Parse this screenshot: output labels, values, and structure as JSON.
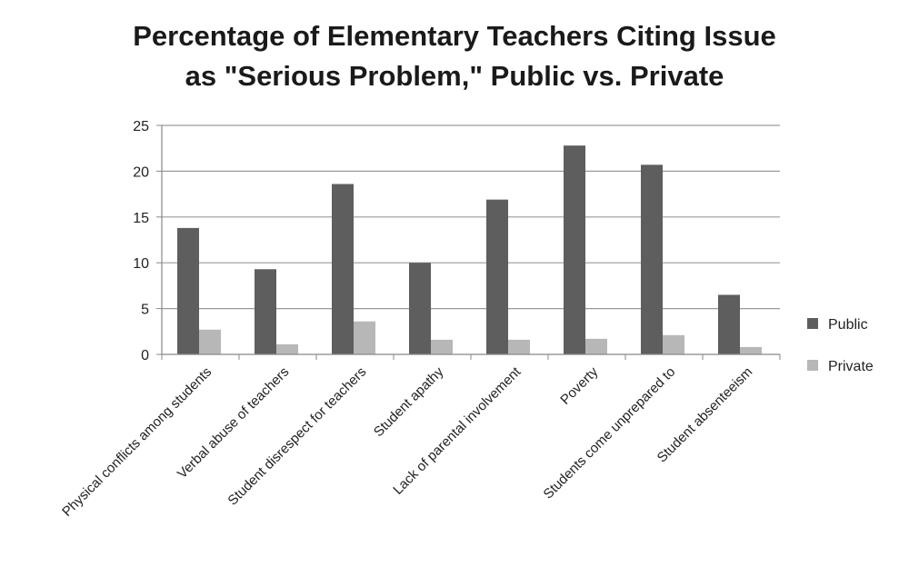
{
  "chart_data": {
    "type": "bar",
    "title_line1": "Percentage of Elementary Teachers Citing Issue",
    "title_line2": "as \"Serious Problem,\" Public vs. Private",
    "categories": [
      "Physical conflicts among students",
      "Verbal abuse of teachers",
      "Student disrespect for teachers",
      "Student apathy",
      "Lack of parental involvement",
      "Poverty",
      "Students come unprepared to",
      "Student absenteeism"
    ],
    "series": [
      {
        "name": "Public",
        "color": "#5e5e5e",
        "values": [
          13.8,
          9.3,
          18.6,
          10.0,
          16.9,
          22.8,
          20.7,
          6.5
        ]
      },
      {
        "name": "Private",
        "color": "#b7b7b7",
        "values": [
          2.7,
          1.1,
          3.6,
          1.6,
          1.6,
          1.7,
          2.1,
          0.8
        ]
      }
    ],
    "yticks": [
      0,
      5,
      10,
      15,
      20,
      25
    ],
    "ylim": [
      0,
      25
    ],
    "xlabel": "",
    "ylabel": "",
    "grid": true,
    "legend": "right"
  }
}
